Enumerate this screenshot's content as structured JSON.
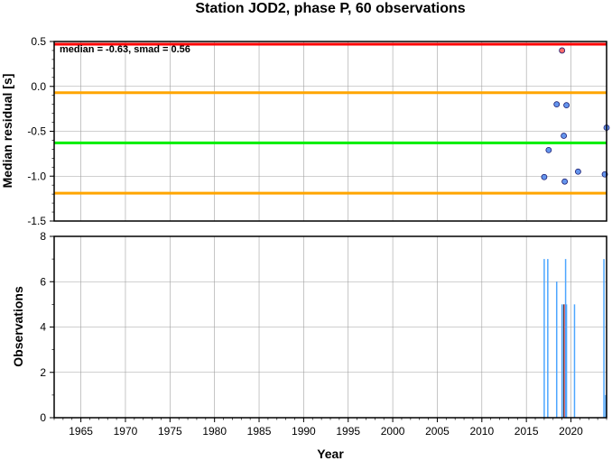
{
  "chart_data": [
    {
      "type": "scatter",
      "title": "Station JOD2, phase P, 60 observations",
      "ylabel": "Median residual [s]",
      "xlim": [
        1962,
        2024
      ],
      "ylim": [
        -1.5,
        0.5
      ],
      "y_ticks": [
        "0.5",
        "0.0",
        "-0.5",
        "-1.0",
        "-1.5"
      ],
      "grid": true,
      "annotation": "median = -0.63, smad = 0.56",
      "reference_lines": [
        {
          "y": 0.47,
          "color": "#ff0000"
        },
        {
          "y": -0.07,
          "color": "#ffa500"
        },
        {
          "y": -0.63,
          "color": "#00ee00"
        },
        {
          "y": -1.19,
          "color": "#ffa500"
        }
      ],
      "points": [
        {
          "x": 2017.0,
          "y": -1.01,
          "color": "#6495ed"
        },
        {
          "x": 2017.5,
          "y": -0.71,
          "color": "#6495ed"
        },
        {
          "x": 2018.4,
          "y": -0.2,
          "color": "#6495ed"
        },
        {
          "x": 2019.0,
          "y": 0.4,
          "color": "#ff6b6b"
        },
        {
          "x": 2019.2,
          "y": -0.55,
          "color": "#6495ed"
        },
        {
          "x": 2019.3,
          "y": -1.06,
          "color": "#6495ed"
        },
        {
          "x": 2019.5,
          "y": -0.21,
          "color": "#6495ed"
        },
        {
          "x": 2020.8,
          "y": -0.95,
          "color": "#6495ed"
        },
        {
          "x": 2023.8,
          "y": -0.98,
          "color": "#6495ed"
        },
        {
          "x": 2024.1,
          "y": -0.46,
          "color": "#6495ed"
        }
      ]
    },
    {
      "type": "bar",
      "ylabel": "Observations",
      "xlabel": "Year",
      "xlim": [
        1962,
        2024
      ],
      "ylim": [
        0,
        8
      ],
      "x_ticks": [
        "1965",
        "1970",
        "1975",
        "1980",
        "1985",
        "1990",
        "1995",
        "2000",
        "2005",
        "2010",
        "2015",
        "2020"
      ],
      "y_ticks": [
        "8",
        "6",
        "4",
        "2",
        "0"
      ],
      "grid": true,
      "bars": [
        {
          "x": 2017.0,
          "value": 7,
          "color": "#4da6ff"
        },
        {
          "x": 2017.4,
          "value": 7,
          "color": "#4da6ff"
        },
        {
          "x": 2018.4,
          "value": 6,
          "color": "#4da6ff"
        },
        {
          "x": 2019.0,
          "value": 5,
          "color": "#4da6ff"
        },
        {
          "x": 2019.2,
          "value": 5,
          "color": "#333333"
        },
        {
          "x": 2019.3,
          "value": 5,
          "color": "#ff6b6b"
        },
        {
          "x": 2019.4,
          "value": 7,
          "color": "#4da6ff"
        },
        {
          "x": 2019.5,
          "value": 5,
          "color": "#4da6ff"
        },
        {
          "x": 2020.4,
          "value": 5,
          "color": "#4da6ff"
        },
        {
          "x": 2023.7,
          "value": 7,
          "color": "#4da6ff"
        },
        {
          "x": 2024.0,
          "value": 1,
          "color": "#4da6ff"
        }
      ]
    }
  ]
}
